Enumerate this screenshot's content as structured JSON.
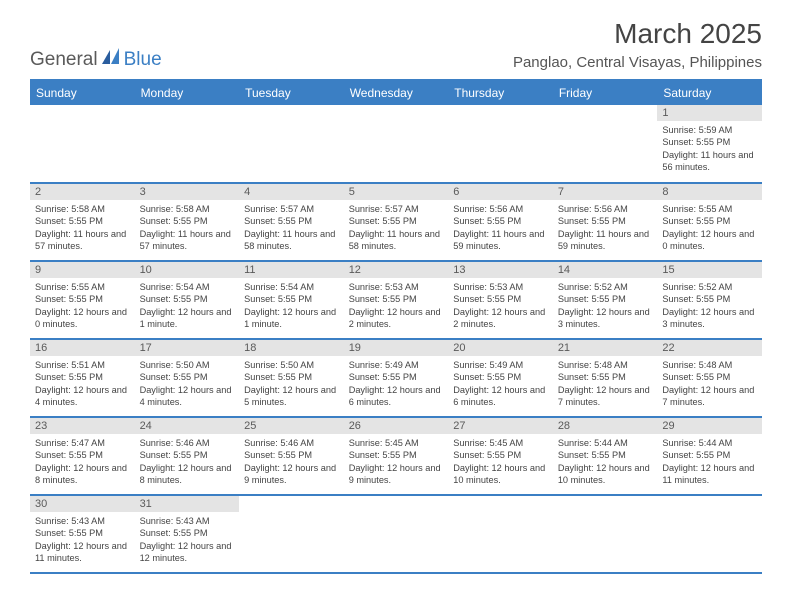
{
  "logo": {
    "general": "General",
    "blue": "Blue"
  },
  "title": "March 2025",
  "subtitle": "Panglao, Central Visayas, Philippines",
  "weekdays": [
    "Sunday",
    "Monday",
    "Tuesday",
    "Wednesday",
    "Thursday",
    "Friday",
    "Saturday"
  ],
  "colors": {
    "header_bg": "#3b7fc4",
    "header_fg": "#ffffff",
    "daynum_bg": "#e4e4e4",
    "daynum_fg": "#5a5a5a",
    "rule": "#3b7fc4",
    "title_fg": "#444444",
    "subtitle_fg": "#555555"
  },
  "layout": {
    "first_weekday_index": 6,
    "days_in_month": 31,
    "rows": 6
  },
  "days": [
    {
      "n": 1,
      "sunrise": "5:59 AM",
      "sunset": "5:55 PM",
      "daylight": "11 hours and 56 minutes."
    },
    {
      "n": 2,
      "sunrise": "5:58 AM",
      "sunset": "5:55 PM",
      "daylight": "11 hours and 57 minutes."
    },
    {
      "n": 3,
      "sunrise": "5:58 AM",
      "sunset": "5:55 PM",
      "daylight": "11 hours and 57 minutes."
    },
    {
      "n": 4,
      "sunrise": "5:57 AM",
      "sunset": "5:55 PM",
      "daylight": "11 hours and 58 minutes."
    },
    {
      "n": 5,
      "sunrise": "5:57 AM",
      "sunset": "5:55 PM",
      "daylight": "11 hours and 58 minutes."
    },
    {
      "n": 6,
      "sunrise": "5:56 AM",
      "sunset": "5:55 PM",
      "daylight": "11 hours and 59 minutes."
    },
    {
      "n": 7,
      "sunrise": "5:56 AM",
      "sunset": "5:55 PM",
      "daylight": "11 hours and 59 minutes."
    },
    {
      "n": 8,
      "sunrise": "5:55 AM",
      "sunset": "5:55 PM",
      "daylight": "12 hours and 0 minutes."
    },
    {
      "n": 9,
      "sunrise": "5:55 AM",
      "sunset": "5:55 PM",
      "daylight": "12 hours and 0 minutes."
    },
    {
      "n": 10,
      "sunrise": "5:54 AM",
      "sunset": "5:55 PM",
      "daylight": "12 hours and 1 minute."
    },
    {
      "n": 11,
      "sunrise": "5:54 AM",
      "sunset": "5:55 PM",
      "daylight": "12 hours and 1 minute."
    },
    {
      "n": 12,
      "sunrise": "5:53 AM",
      "sunset": "5:55 PM",
      "daylight": "12 hours and 2 minutes."
    },
    {
      "n": 13,
      "sunrise": "5:53 AM",
      "sunset": "5:55 PM",
      "daylight": "12 hours and 2 minutes."
    },
    {
      "n": 14,
      "sunrise": "5:52 AM",
      "sunset": "5:55 PM",
      "daylight": "12 hours and 3 minutes."
    },
    {
      "n": 15,
      "sunrise": "5:52 AM",
      "sunset": "5:55 PM",
      "daylight": "12 hours and 3 minutes."
    },
    {
      "n": 16,
      "sunrise": "5:51 AM",
      "sunset": "5:55 PM",
      "daylight": "12 hours and 4 minutes."
    },
    {
      "n": 17,
      "sunrise": "5:50 AM",
      "sunset": "5:55 PM",
      "daylight": "12 hours and 4 minutes."
    },
    {
      "n": 18,
      "sunrise": "5:50 AM",
      "sunset": "5:55 PM",
      "daylight": "12 hours and 5 minutes."
    },
    {
      "n": 19,
      "sunrise": "5:49 AM",
      "sunset": "5:55 PM",
      "daylight": "12 hours and 6 minutes."
    },
    {
      "n": 20,
      "sunrise": "5:49 AM",
      "sunset": "5:55 PM",
      "daylight": "12 hours and 6 minutes."
    },
    {
      "n": 21,
      "sunrise": "5:48 AM",
      "sunset": "5:55 PM",
      "daylight": "12 hours and 7 minutes."
    },
    {
      "n": 22,
      "sunrise": "5:48 AM",
      "sunset": "5:55 PM",
      "daylight": "12 hours and 7 minutes."
    },
    {
      "n": 23,
      "sunrise": "5:47 AM",
      "sunset": "5:55 PM",
      "daylight": "12 hours and 8 minutes."
    },
    {
      "n": 24,
      "sunrise": "5:46 AM",
      "sunset": "5:55 PM",
      "daylight": "12 hours and 8 minutes."
    },
    {
      "n": 25,
      "sunrise": "5:46 AM",
      "sunset": "5:55 PM",
      "daylight": "12 hours and 9 minutes."
    },
    {
      "n": 26,
      "sunrise": "5:45 AM",
      "sunset": "5:55 PM",
      "daylight": "12 hours and 9 minutes."
    },
    {
      "n": 27,
      "sunrise": "5:45 AM",
      "sunset": "5:55 PM",
      "daylight": "12 hours and 10 minutes."
    },
    {
      "n": 28,
      "sunrise": "5:44 AM",
      "sunset": "5:55 PM",
      "daylight": "12 hours and 10 minutes."
    },
    {
      "n": 29,
      "sunrise": "5:44 AM",
      "sunset": "5:55 PM",
      "daylight": "12 hours and 11 minutes."
    },
    {
      "n": 30,
      "sunrise": "5:43 AM",
      "sunset": "5:55 PM",
      "daylight": "12 hours and 11 minutes."
    },
    {
      "n": 31,
      "sunrise": "5:43 AM",
      "sunset": "5:55 PM",
      "daylight": "12 hours and 12 minutes."
    }
  ],
  "labels": {
    "sunrise_prefix": "Sunrise: ",
    "sunset_prefix": "Sunset: ",
    "daylight_prefix": "Daylight: "
  }
}
